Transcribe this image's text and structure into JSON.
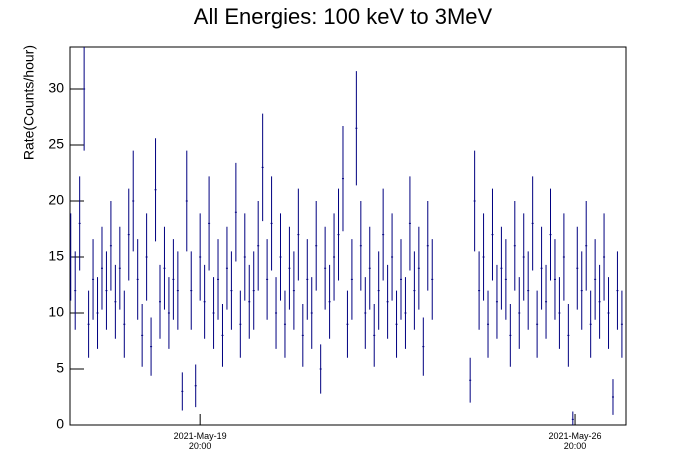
{
  "chart_data": {
    "type": "errorbar",
    "title": "All Energies:  100 keV to 3MeV",
    "y_label": "Rate(Counts/hour)",
    "color": "#000080",
    "xlim": [
      "2021-05-17 09:40",
      "2021-05-27 18:50"
    ],
    "ylim": [
      0,
      33.75
    ],
    "xticks": [
      {
        "value": "2021-05-19 20:00",
        "label": "2021-May-19\n20:00"
      },
      {
        "value": "2021-05-26 20:00",
        "label": "2021-May-26\n20:00"
      }
    ],
    "yticks": [
      0,
      5,
      10,
      15,
      20,
      25,
      30
    ],
    "x": [
      "2021-05-17 10:00",
      "2021-05-17 12:00",
      "2021-05-17 14:00",
      "2021-05-17 16:00",
      "2021-05-17 18:00",
      "2021-05-17 20:00",
      "2021-05-17 22:00",
      "2021-05-18 00:00",
      "2021-05-18 02:00",
      "2021-05-18 04:00",
      "2021-05-18 06:00",
      "2021-05-18 08:00",
      "2021-05-18 10:00",
      "2021-05-18 12:00",
      "2021-05-18 14:00",
      "2021-05-18 16:00",
      "2021-05-18 18:00",
      "2021-05-18 20:00",
      "2021-05-18 22:00",
      "2021-05-19 00:00",
      "2021-05-19 02:00",
      "2021-05-19 04:00",
      "2021-05-19 06:00",
      "2021-05-19 08:00",
      "2021-05-19 10:00",
      "2021-05-19 12:00",
      "2021-05-19 14:00",
      "2021-05-19 16:00",
      "2021-05-19 18:00",
      "2021-05-19 20:00",
      "2021-05-19 22:00",
      "2021-05-20 00:00",
      "2021-05-20 02:00",
      "2021-05-20 04:00",
      "2021-05-20 06:00",
      "2021-05-20 08:00",
      "2021-05-20 10:00",
      "2021-05-20 12:00",
      "2021-05-20 14:00",
      "2021-05-20 16:00",
      "2021-05-20 18:00",
      "2021-05-20 20:00",
      "2021-05-20 22:00",
      "2021-05-21 00:00",
      "2021-05-21 02:00",
      "2021-05-21 04:00",
      "2021-05-21 06:00",
      "2021-05-21 08:00",
      "2021-05-21 10:00",
      "2021-05-21 12:00",
      "2021-05-21 14:00",
      "2021-05-21 16:00",
      "2021-05-21 18:00",
      "2021-05-21 20:00",
      "2021-05-21 22:00",
      "2021-05-22 00:00",
      "2021-05-22 02:00",
      "2021-05-22 04:00",
      "2021-05-22 06:00",
      "2021-05-22 08:00",
      "2021-05-22 10:00",
      "2021-05-22 12:00",
      "2021-05-22 14:00",
      "2021-05-22 16:00",
      "2021-05-22 18:00",
      "2021-05-22 20:00",
      "2021-05-22 22:00",
      "2021-05-23 00:00",
      "2021-05-23 02:00",
      "2021-05-23 04:00",
      "2021-05-23 06:00",
      "2021-05-23 08:00",
      "2021-05-23 10:00",
      "2021-05-23 12:00",
      "2021-05-23 14:00",
      "2021-05-23 16:00",
      "2021-05-23 18:00",
      "2021-05-23 20:00",
      "2021-05-23 22:00",
      "2021-05-24 00:00",
      "2021-05-24 02:00",
      "2021-05-24 04:00",
      "2021-05-24 21:00",
      "2021-05-24 23:00",
      "2021-05-25 01:00",
      "2021-05-25 03:00",
      "2021-05-25 05:00",
      "2021-05-25 07:00",
      "2021-05-25 09:00",
      "2021-05-25 11:00",
      "2021-05-25 13:00",
      "2021-05-25 15:00",
      "2021-05-25 17:00",
      "2021-05-25 19:00",
      "2021-05-25 21:00",
      "2021-05-25 23:00",
      "2021-05-26 01:00",
      "2021-05-26 03:00",
      "2021-05-26 05:00",
      "2021-05-26 07:00",
      "2021-05-26 09:00",
      "2021-05-26 11:00",
      "2021-05-26 13:00",
      "2021-05-26 15:00",
      "2021-05-26 17:00",
      "2021-05-26 19:00",
      "2021-05-26 21:00",
      "2021-05-26 23:00",
      "2021-05-27 01:00",
      "2021-05-27 03:00",
      "2021-05-27 05:00",
      "2021-05-27 07:00",
      "2021-05-27 09:00",
      "2021-05-27 11:00",
      "2021-05-27 13:00",
      "2021-05-27 15:00",
      "2021-05-27 17:00"
    ],
    "values": [
      15,
      12,
      18,
      30,
      9,
      13,
      10,
      14,
      12,
      16,
      11,
      14,
      9,
      17,
      20,
      13,
      8,
      15,
      7,
      21,
      11,
      14,
      10,
      13,
      12,
      3,
      20,
      12,
      3.5,
      15,
      11,
      18,
      10,
      13,
      8,
      14,
      12,
      19,
      9,
      15,
      11,
      12,
      16,
      23,
      13,
      18,
      10,
      15,
      9,
      14,
      12,
      17,
      8,
      13,
      10,
      16,
      5,
      14,
      11,
      15,
      17,
      22,
      9,
      13,
      26.5,
      16,
      10,
      14,
      8,
      12,
      17,
      11,
      15,
      9,
      13,
      10,
      18,
      12,
      14,
      7,
      16,
      13,
      4,
      20,
      12,
      15,
      9,
      17,
      11,
      14,
      13,
      8,
      16,
      10,
      15,
      12,
      18,
      9,
      14,
      11,
      17,
      13,
      10,
      15,
      8,
      0.5,
      14,
      12,
      16,
      9,
      13,
      11,
      15,
      10,
      2.5,
      12,
      9
    ],
    "errors": [
      3.9,
      3.5,
      4.2,
      5.5,
      3,
      3.6,
      3.2,
      3.7,
      3.5,
      4,
      3.3,
      3.7,
      3,
      4.1,
      4.5,
      3.6,
      2.8,
      3.9,
      2.6,
      4.6,
      3.3,
      3.7,
      3.2,
      3.6,
      3.5,
      1.7,
      4.5,
      3.5,
      1.9,
      3.9,
      3.3,
      4.2,
      3.2,
      3.6,
      2.8,
      3.7,
      3.5,
      4.4,
      3,
      3.9,
      3.3,
      3.5,
      4,
      4.8,
      3.6,
      4.2,
      3.2,
      3.9,
      3,
      3.7,
      3.5,
      4.1,
      2.8,
      3.6,
      3.2,
      4,
      2.2,
      3.7,
      3.3,
      3.9,
      4.1,
      4.7,
      3,
      3.6,
      5.1,
      4,
      3.2,
      3.7,
      2.8,
      3.5,
      4.1,
      3.3,
      3.9,
      3,
      3.6,
      3.2,
      4.2,
      3.5,
      3.7,
      2.6,
      4,
      3.6,
      2,
      4.5,
      3.5,
      3.9,
      3,
      4.1,
      3.3,
      3.7,
      3.6,
      2.8,
      4,
      3.2,
      3.9,
      3.5,
      4.2,
      3,
      3.7,
      3.3,
      4.1,
      3.6,
      3.2,
      3.9,
      2.8,
      0.7,
      3.7,
      3.5,
      4,
      3,
      3.6,
      3.3,
      3.9,
      3.2,
      1.6,
      3.5,
      3
    ]
  }
}
